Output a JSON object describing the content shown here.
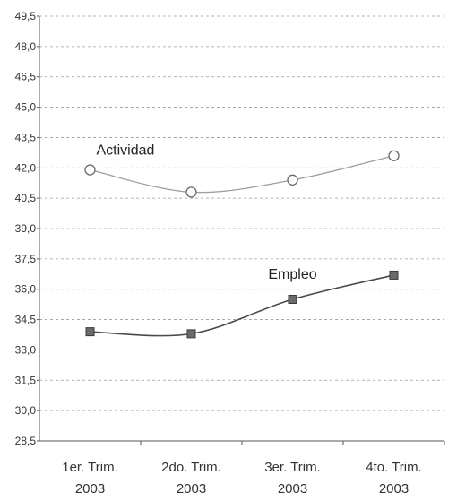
{
  "chart_data": {
    "type": "line",
    "categories": [
      [
        "1er. Trim.",
        "2003"
      ],
      [
        "2do. Trim.",
        "2003"
      ],
      [
        "3er. Trim.",
        "2003"
      ],
      [
        "4to. Trim.",
        "2003"
      ]
    ],
    "series": [
      {
        "name": "Actividad",
        "values": [
          41.9,
          40.8,
          41.4,
          42.6
        ],
        "color": "#9e9e9e",
        "marker": "circle"
      },
      {
        "name": "Empleo",
        "values": [
          33.9,
          33.8,
          35.5,
          36.7
        ],
        "color": "#4a4a4a",
        "marker": "square"
      }
    ],
    "y_ticks": [
      "28,5",
      "30,0",
      "31,5",
      "33,0",
      "34,5",
      "36,0",
      "37,5",
      "39,0",
      "40,5",
      "42,0",
      "43,5",
      "45,0",
      "46,5",
      "48,0",
      "49,5"
    ],
    "ylim": [
      28.5,
      49.5
    ],
    "grid": true,
    "title": "",
    "xlabel": "",
    "ylabel": ""
  }
}
